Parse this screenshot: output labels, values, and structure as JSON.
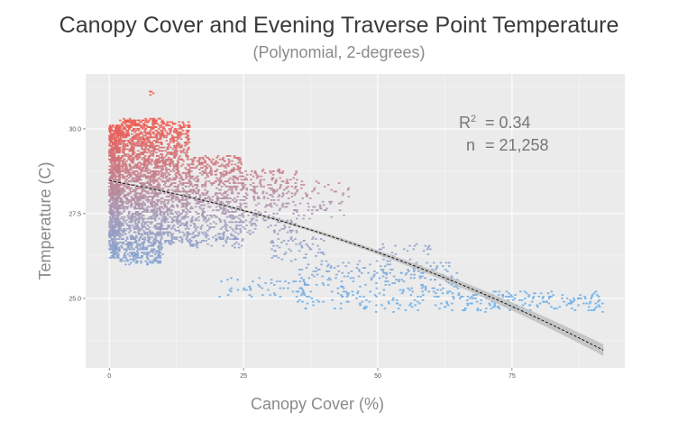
{
  "chart_data": {
    "type": "scatter",
    "title": "Canopy Cover and Evening Traverse Point Temperature",
    "subtitle": "(Polynomial, 2-degrees)",
    "xlabel": "Canopy Cover (%)",
    "ylabel": "Temperature (C)",
    "xlim": [
      -4.4,
      96
    ],
    "ylim": [
      22.95,
      31.62
    ],
    "x_ticks": [
      {
        "value": 0,
        "label": "0"
      },
      {
        "value": 25,
        "label": "25"
      },
      {
        "value": 50,
        "label": "50"
      },
      {
        "value": 75,
        "label": "75"
      }
    ],
    "y_ticks": [
      {
        "value": 25,
        "label": "25.0"
      },
      {
        "value": 27.5,
        "label": "27.5"
      },
      {
        "value": 30,
        "label": "30.0"
      }
    ],
    "grid": true,
    "annotations": {
      "r2_label": "R",
      "r2_sup": "2",
      "r2_value": "= 0.34",
      "n_label": "n",
      "n_value": "= 21,258"
    },
    "color_scale": {
      "low_value": 24.5,
      "high_value": 30.3,
      "low_color": "#5aaef0",
      "mid_color": "#a39ab8",
      "high_color": "#f2584c"
    },
    "fit": {
      "kind": "polynomial",
      "degree": 2,
      "coefficients": [
        28.47,
        -0.0279,
        -0.000287
      ],
      "x_range": [
        0,
        92
      ],
      "ci_halfwidth_at_max": 0.15,
      "line_color": "#000000",
      "band_color": "#bdbdbd"
    },
    "point_distribution": [
      {
        "x_range": [
          0,
          2
        ],
        "y_range": [
          26.2,
          30.1
        ],
        "count": 900
      },
      {
        "x_range": [
          2,
          10
        ],
        "y_range": [
          26.0,
          30.3
        ],
        "count": 1700
      },
      {
        "x_range": [
          7.5,
          8.5
        ],
        "y_range": [
          30.9,
          31.25
        ],
        "count": 4
      },
      {
        "x_range": [
          10,
          15
        ],
        "y_range": [
          26.6,
          30.2
        ],
        "count": 650
      },
      {
        "x_range": [
          15,
          25
        ],
        "y_range": [
          26.5,
          29.2
        ],
        "count": 650
      },
      {
        "x_range": [
          25,
          35
        ],
        "y_range": [
          26.9,
          28.8
        ],
        "count": 260
      },
      {
        "x_range": [
          35,
          45
        ],
        "y_range": [
          27.3,
          28.5
        ],
        "count": 60
      },
      {
        "x_range": [
          30,
          40
        ],
        "y_range": [
          26.1,
          26.8
        ],
        "count": 60
      },
      {
        "x_range": [
          20,
          35
        ],
        "y_range": [
          25.0,
          25.6
        ],
        "count": 45
      },
      {
        "x_range": [
          35,
          65
        ],
        "y_range": [
          24.6,
          26.1
        ],
        "count": 320
      },
      {
        "x_range": [
          50,
          60
        ],
        "y_range": [
          26.1,
          26.6
        ],
        "count": 25
      },
      {
        "x_range": [
          65,
          92
        ],
        "y_range": [
          24.6,
          25.2
        ],
        "count": 170
      }
    ]
  }
}
